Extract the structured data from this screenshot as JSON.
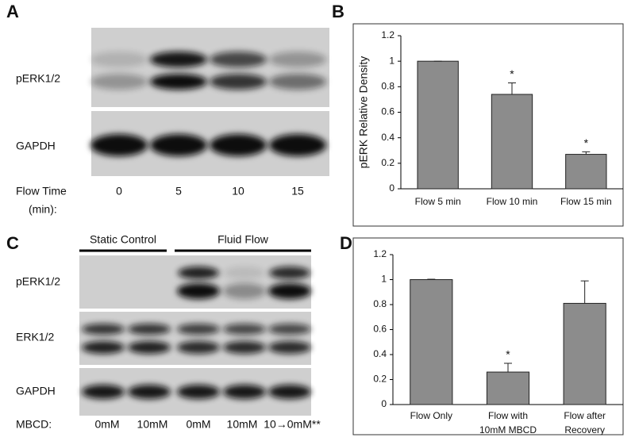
{
  "panel_labels": [
    "A",
    "B",
    "C",
    "D"
  ],
  "blot_a": {
    "rows": [
      "pERK1/2",
      "GAPDH"
    ],
    "lane_title": [
      "Flow Time",
      "(min):"
    ],
    "lanes": [
      "0",
      "5",
      "10",
      "15"
    ]
  },
  "blot_c": {
    "groups": [
      "Static Control",
      "Fluid Flow"
    ],
    "rows": [
      "pERK1/2",
      "ERK1/2",
      "GAPDH"
    ],
    "lane_title": "MBCD:",
    "lanes": [
      "0mM",
      "10mM",
      "0mM",
      "10mM",
      "10→0mM**"
    ]
  },
  "chart_data": [
    {
      "type": "bar",
      "y_label": "pERK Relative Density",
      "categories": [
        [
          "Flow 5 min"
        ],
        [
          "Flow 10 min"
        ],
        [
          "Flow 15 min"
        ]
      ],
      "values": [
        1,
        0.74,
        0.27
      ],
      "errors": [
        0,
        0.09,
        0.02
      ],
      "significance": [
        null,
        "*",
        "*"
      ],
      "color": "#8c8c8c",
      "ylim": [
        0,
        1.2
      ],
      "yticks": [
        0,
        0.2,
        0.4,
        0.6,
        0.8,
        1,
        1.2
      ]
    },
    {
      "type": "bar",
      "categories": [
        [
          "Flow Only"
        ],
        [
          "Flow with",
          "10mM MBCD"
        ],
        [
          "Flow after",
          "Recovery"
        ]
      ],
      "values": [
        1,
        0.26,
        0.81
      ],
      "errors": [
        0.003,
        0.07,
        0.18
      ],
      "significance": [
        null,
        "*",
        null
      ],
      "color": "#8c8c8c",
      "ylim": [
        0,
        1.2
      ],
      "yticks": [
        0,
        0.2,
        0.4,
        0.6,
        0.8,
        1,
        1.2
      ]
    }
  ]
}
